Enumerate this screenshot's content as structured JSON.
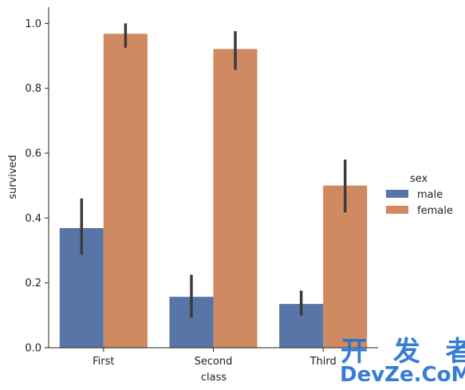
{
  "chart_data": {
    "type": "bar",
    "categories": [
      "First",
      "Second",
      "Third"
    ],
    "xlabel": "class",
    "ylabel": "survived",
    "ylim": [
      0,
      1.05
    ],
    "yticks": [
      "0.0",
      "0.2",
      "0.4",
      "0.6",
      "0.8",
      "1.0"
    ],
    "legend_title": "sex",
    "legend_position": "right",
    "grid": false,
    "series": [
      {
        "name": "male",
        "color": "#5875a8",
        "values": [
          0.369,
          0.157,
          0.135
        ],
        "ci_low": [
          0.287,
          0.093,
          0.099
        ],
        "ci_high": [
          0.46,
          0.225,
          0.176
        ]
      },
      {
        "name": "female",
        "color": "#cf8a61",
        "values": [
          0.968,
          0.921,
          0.5
        ],
        "ci_low": [
          0.925,
          0.857,
          0.417
        ],
        "ci_high": [
          1.0,
          0.976,
          0.58
        ]
      }
    ],
    "error_bar_color": "#3b3b3b"
  },
  "watermark": {
    "line1": "开 发 者",
    "line2": "DevZe.CoM",
    "color": "#1f6fd0"
  }
}
